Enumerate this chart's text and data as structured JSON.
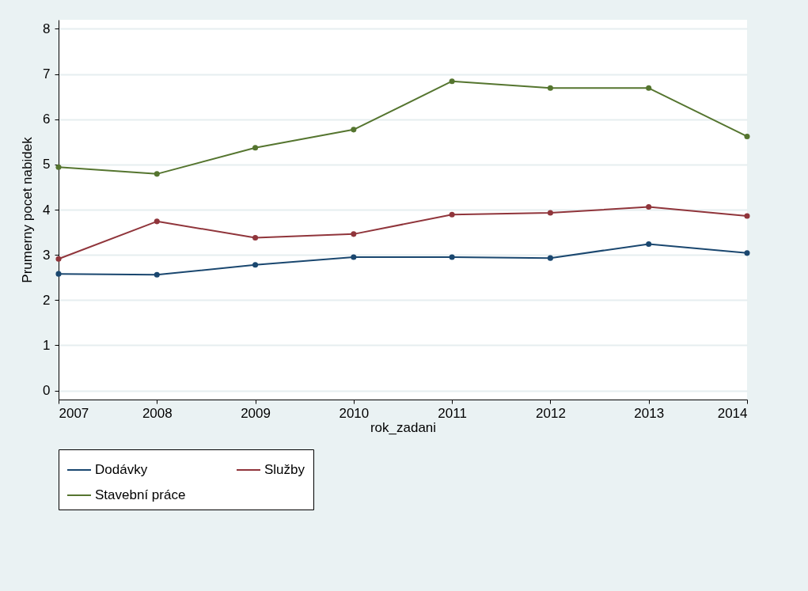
{
  "chart_data": {
    "type": "line",
    "xlabel": "rok_zadani",
    "ylabel": "Prumerny pocet nabidek",
    "x": [
      2007,
      2008,
      2009,
      2010,
      2011,
      2012,
      2013,
      2014
    ],
    "xlim": [
      2007,
      2014
    ],
    "xticks": [
      2007,
      2008,
      2009,
      2010,
      2011,
      2012,
      2013,
      2014
    ],
    "ylim": [
      -0.2,
      8.2
    ],
    "yticks": [
      0,
      1,
      2,
      3,
      4,
      5,
      6,
      7,
      8
    ],
    "grid": "y",
    "legend": "bottom",
    "marker": "circle",
    "line_style": "solid",
    "series": [
      {
        "name": "Dodávky",
        "color": "#1a476f",
        "values": [
          2.58,
          2.56,
          2.78,
          2.95,
          2.95,
          2.93,
          3.24,
          3.04
        ]
      },
      {
        "name": "Služby",
        "color": "#90353b",
        "values": [
          2.91,
          3.74,
          3.38,
          3.46,
          3.89,
          3.93,
          4.06,
          3.86
        ]
      },
      {
        "name": "Stavební práce",
        "color": "#55752f",
        "values": [
          4.94,
          4.79,
          5.37,
          5.77,
          6.84,
          6.69,
          6.69,
          5.62
        ]
      }
    ]
  }
}
